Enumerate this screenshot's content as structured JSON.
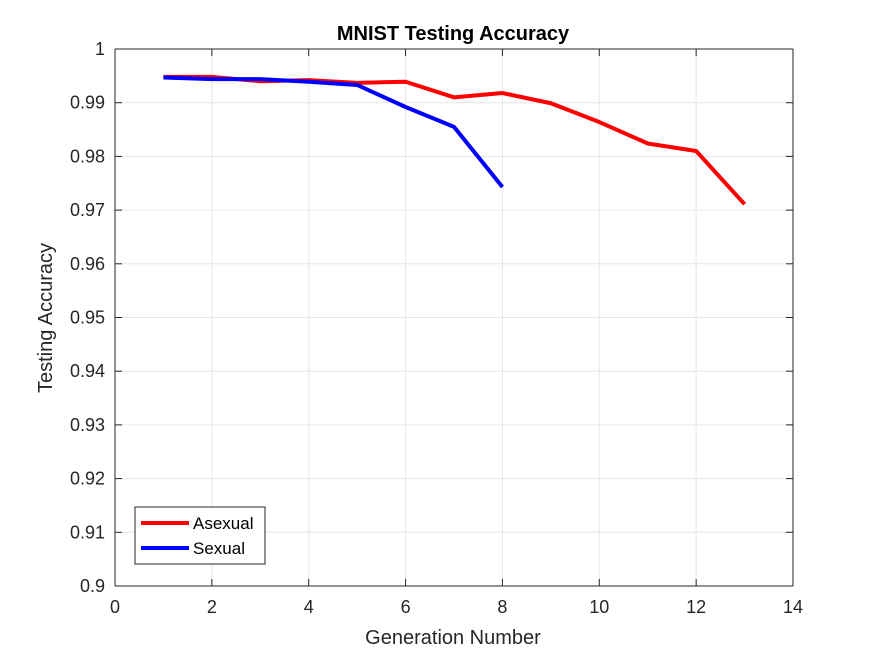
{
  "chart_data": {
    "type": "line",
    "title": "MNIST Testing Accuracy",
    "xlabel": "Generation Number",
    "ylabel": "Testing Accuracy",
    "xlim": [
      0,
      14
    ],
    "ylim": [
      0.9,
      1
    ],
    "xticks": [
      0,
      2,
      4,
      6,
      8,
      10,
      12,
      14
    ],
    "xtick_labels": [
      "0",
      "2",
      "4",
      "6",
      "8",
      "10",
      "12",
      "14"
    ],
    "yticks": [
      0.9,
      0.91,
      0.92,
      0.93,
      0.94,
      0.95,
      0.96,
      0.97,
      0.98,
      0.99,
      1
    ],
    "ytick_labels": [
      "0.9",
      "0.91",
      "0.92",
      "0.93",
      "0.94",
      "0.95",
      "0.96",
      "0.97",
      "0.98",
      "0.99",
      "1"
    ],
    "grid": true,
    "legend_position": "bottom-left",
    "series": [
      {
        "name": "Asexual",
        "color": "#ff0000",
        "x": [
          1,
          2,
          3,
          4,
          5,
          6,
          7,
          8,
          9,
          10,
          11,
          12,
          13
        ],
        "y": [
          0.9948,
          0.9948,
          0.994,
          0.9942,
          0.9937,
          0.9939,
          0.991,
          0.9918,
          0.9899,
          0.9864,
          0.9824,
          0.981,
          0.9711
        ]
      },
      {
        "name": "Sexual",
        "color": "#0000ff",
        "x": [
          1,
          2,
          3,
          4,
          5,
          6,
          7,
          8
        ],
        "y": [
          0.9947,
          0.9944,
          0.9944,
          0.9939,
          0.9933,
          0.9892,
          0.9855,
          0.9743
        ]
      }
    ]
  }
}
